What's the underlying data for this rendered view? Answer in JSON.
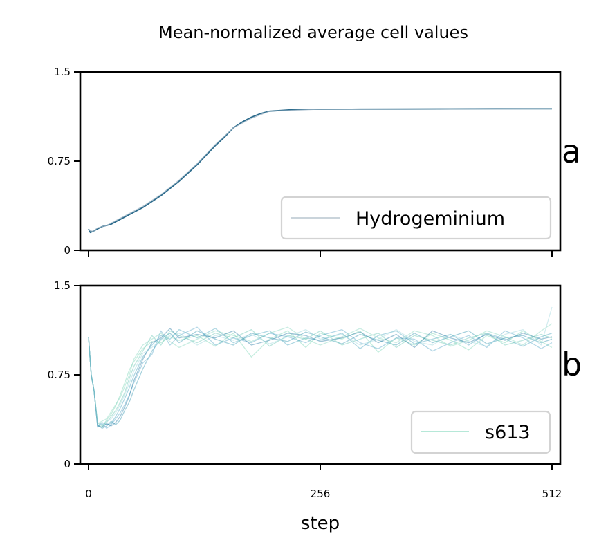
{
  "chart_data": {
    "type": "line",
    "title": "Mean-normalized average cell values",
    "xlabel": "step",
    "xlim": [
      0,
      512
    ],
    "x_ticks": [
      "0",
      "256",
      "512"
    ],
    "grid": false,
    "panels": [
      {
        "panel_label": "a",
        "ylabel": "",
        "ylim": [
          0,
          1.5
        ],
        "y_ticks": [
          "0",
          "0.75",
          "1.5"
        ],
        "legend_position": "lower-right",
        "legend": [
          "Hydrogeminium"
        ],
        "series": [
          {
            "name": "Hydrogeminium",
            "color": "#2c6b8c",
            "x": [
              0,
              2,
              5,
              10,
              15,
              20,
              25,
              30,
              40,
              50,
              60,
              70,
              80,
              90,
              100,
              110,
              120,
              130,
              140,
              150,
              160,
              170,
              180,
              190,
              200,
              230,
              256,
              300,
              350,
              400,
              450,
              512
            ],
            "y": [
              0.18,
              0.15,
              0.16,
              0.18,
              0.2,
              0.21,
              0.22,
              0.24,
              0.28,
              0.32,
              0.36,
              0.41,
              0.46,
              0.52,
              0.58,
              0.65,
              0.72,
              0.8,
              0.88,
              0.95,
              1.03,
              1.08,
              1.12,
              1.15,
              1.17,
              1.185,
              1.186,
              1.187,
              1.188,
              1.189,
              1.19,
              1.19
            ]
          },
          {
            "name": "",
            "color": "#9ab3c4",
            "x": [
              0,
              5,
              10,
              20,
              30,
              40,
              60,
              80,
              100,
              120,
              140,
              160,
              180,
              200,
              256,
              350,
              512
            ],
            "y": [
              0.17,
              0.16,
              0.19,
              0.21,
              0.25,
              0.29,
              0.37,
              0.47,
              0.59,
              0.73,
              0.89,
              1.03,
              1.11,
              1.17,
              1.186,
              1.188,
              1.19
            ]
          }
        ]
      },
      {
        "panel_label": "b",
        "ylabel": "",
        "ylim": [
          0,
          1.5
        ],
        "y_ticks": [
          "0",
          "0.75",
          "1.5"
        ],
        "legend_position": "lower-right",
        "legend": [
          "s613"
        ],
        "series": [
          {
            "name": "s613",
            "color": "#7fd6b8",
            "x": [
              0,
              3,
              6,
              10,
              15,
              20,
              25,
              30,
              35,
              40,
              45,
              50,
              60,
              70,
              80,
              90,
              100,
              120,
              140,
              160,
              180,
              200,
              220,
              240,
              256,
              280,
              300,
              320,
              340,
              360,
              380,
              400,
              420,
              440,
              460,
              480,
              500,
              512
            ],
            "y": [
              1.07,
              0.75,
              0.62,
              0.33,
              0.31,
              0.37,
              0.42,
              0.49,
              0.58,
              0.68,
              0.79,
              0.86,
              0.97,
              1.03,
              1.02,
              1.07,
              1.04,
              1.08,
              0.99,
              1.1,
              0.9,
              1.05,
              1.12,
              0.98,
              1.1,
              1.05,
              1.12,
              0.94,
              1.06,
              1.0,
              1.1,
              1.04,
              0.96,
              1.08,
              1.02,
              1.12,
              1.03,
              0.98
            ]
          },
          {
            "name": "",
            "color": "#4fa8c0",
            "x": [
              0,
              3,
              6,
              10,
              15,
              20,
              25,
              30,
              35,
              40,
              45,
              50,
              60,
              70,
              80,
              90,
              100,
              120,
              140,
              160,
              180,
              200,
              220,
              240,
              256,
              280,
              300,
              320,
              340,
              360,
              380,
              400,
              420,
              440,
              460,
              480,
              500,
              512
            ],
            "y": [
              1.07,
              0.75,
              0.62,
              0.32,
              0.35,
              0.33,
              0.34,
              0.4,
              0.47,
              0.55,
              0.64,
              0.74,
              0.9,
              1.0,
              1.08,
              1.05,
              1.13,
              1.06,
              1.14,
              1.02,
              1.08,
              1.12,
              1.0,
              1.06,
              1.04,
              1.1,
              0.97,
              1.08,
              1.12,
              1.01,
              1.05,
              1.09,
              1.0,
              1.1,
              1.05,
              0.99,
              1.07,
              1.1
            ]
          },
          {
            "name": "",
            "color": "#3e9bb3",
            "x": [
              0,
              3,
              6,
              10,
              15,
              20,
              25,
              30,
              35,
              40,
              45,
              50,
              60,
              70,
              80,
              90,
              100,
              120,
              140,
              160,
              180,
              200,
              220,
              240,
              256,
              280,
              300,
              320,
              340,
              360,
              380,
              400,
              420,
              440,
              460,
              480,
              500,
              512
            ],
            "y": [
              1.07,
              0.75,
              0.62,
              0.33,
              0.3,
              0.32,
              0.36,
              0.33,
              0.37,
              0.45,
              0.52,
              0.62,
              0.8,
              0.95,
              1.05,
              1.1,
              1.02,
              1.12,
              1.05,
              1.0,
              1.1,
              1.06,
              1.03,
              1.11,
              1.07,
              1.01,
              1.09,
              1.04,
              1.0,
              1.1,
              1.02,
              1.07,
              1.12,
              1.01,
              1.06,
              1.08,
              1.02,
              1.05
            ]
          },
          {
            "name": "",
            "color": "#6cc7b6",
            "x": [
              0,
              3,
              6,
              10,
              15,
              20,
              25,
              30,
              35,
              40,
              45,
              50,
              60,
              70,
              80,
              90,
              100,
              120,
              140,
              160,
              180,
              200,
              220,
              240,
              256,
              280,
              300,
              320,
              340,
              360,
              380,
              400,
              420,
              440,
              460,
              480,
              500,
              512
            ],
            "y": [
              1.07,
              0.75,
              0.62,
              0.35,
              0.32,
              0.35,
              0.4,
              0.45,
              0.52,
              0.6,
              0.72,
              0.82,
              0.95,
              1.08,
              1.0,
              1.12,
              1.08,
              1.02,
              1.1,
              1.06,
              1.13,
              0.99,
              1.08,
              1.05,
              1.12,
              1.0,
              1.05,
              1.1,
              0.98,
              1.08,
              1.04,
              1.0,
              1.06,
              1.1,
              1.0,
              1.04,
              1.09,
              1.06
            ]
          },
          {
            "name": "",
            "color": "#5aa9c9",
            "x": [
              0,
              3,
              6,
              10,
              15,
              20,
              25,
              30,
              35,
              40,
              45,
              50,
              60,
              70,
              80,
              90,
              100,
              120,
              140,
              160,
              180,
              200,
              220,
              240,
              256,
              280,
              300,
              320,
              340,
              360,
              380,
              400,
              420,
              440,
              460,
              480,
              500,
              512
            ],
            "y": [
              1.07,
              0.75,
              0.62,
              0.31,
              0.34,
              0.3,
              0.33,
              0.38,
              0.43,
              0.5,
              0.58,
              0.68,
              0.85,
              0.92,
              1.12,
              1.0,
              1.08,
              1.15,
              1.0,
              1.06,
              1.02,
              1.1,
              1.07,
              1.02,
              1.08,
              1.13,
              1.02,
              0.97,
              1.06,
              1.05,
              0.95,
              1.02,
              1.08,
              0.98,
              1.12,
              1.06,
              0.97,
              1.02
            ]
          },
          {
            "name": "",
            "color": "#8ad7c0",
            "x": [
              0,
              3,
              6,
              10,
              15,
              20,
              25,
              30,
              35,
              40,
              45,
              50,
              60,
              70,
              80,
              90,
              100,
              120,
              140,
              160,
              180,
              200,
              220,
              240,
              256,
              280,
              300,
              320,
              340,
              360,
              380,
              400,
              420,
              440,
              460,
              480,
              500,
              512
            ],
            "y": [
              1.07,
              0.75,
              0.62,
              0.34,
              0.36,
              0.38,
              0.44,
              0.5,
              0.56,
              0.65,
              0.75,
              0.88,
              1.0,
              1.05,
              1.1,
              1.03,
              0.98,
              1.05,
              1.12,
              1.08,
              1.03,
              1.1,
              1.15,
              1.05,
              1.0,
              1.07,
              1.14,
              1.06,
              1.02,
              1.12,
              1.08,
              0.99,
              1.04,
              1.12,
              1.07,
              1.0,
              1.12,
              1.18
            ]
          },
          {
            "name": "",
            "color": "#2f7fa6",
            "x": [
              0,
              3,
              6,
              10,
              15,
              20,
              25,
              30,
              35,
              40,
              45,
              50,
              60,
              70,
              80,
              90,
              100,
              120,
              140,
              160,
              180,
              200,
              220,
              240,
              256,
              280,
              300,
              320,
              340,
              360,
              380,
              400,
              420,
              440,
              460,
              480,
              500,
              512
            ],
            "y": [
              1.07,
              0.75,
              0.62,
              0.32,
              0.31,
              0.34,
              0.32,
              0.35,
              0.4,
              0.48,
              0.57,
              0.7,
              0.88,
              1.02,
              1.06,
              1.14,
              1.06,
              1.09,
              1.06,
              1.12,
              1.0,
              1.04,
              1.1,
              1.08,
              1.03,
              1.06,
              1.11,
              1.02,
              1.09,
              0.98,
              1.12,
              1.06,
              1.02,
              1.09,
              1.04,
              1.1,
              1.05,
              1.07
            ]
          },
          {
            "name": "",
            "color": "#9fd8de",
            "x": [
              0,
              3,
              6,
              10,
              15,
              20,
              25,
              30,
              35,
              40,
              45,
              50,
              60,
              70,
              80,
              90,
              100,
              120,
              140,
              160,
              180,
              200,
              220,
              240,
              256,
              280,
              300,
              320,
              340,
              360,
              380,
              400,
              420,
              440,
              460,
              480,
              500,
              512
            ],
            "y": [
              1.07,
              0.75,
              0.62,
              0.33,
              0.33,
              0.36,
              0.38,
              0.43,
              0.5,
              0.58,
              0.68,
              0.78,
              0.93,
              0.98,
              1.04,
              1.08,
              1.1,
              1.0,
              1.08,
              1.04,
              1.09,
              1.01,
              1.07,
              1.13,
              1.05,
              1.09,
              1.0,
              1.05,
              1.13,
              1.03,
              1.0,
              1.09,
              1.03,
              0.99,
              1.09,
              1.13,
              1.0,
              1.32
            ]
          }
        ]
      }
    ]
  }
}
